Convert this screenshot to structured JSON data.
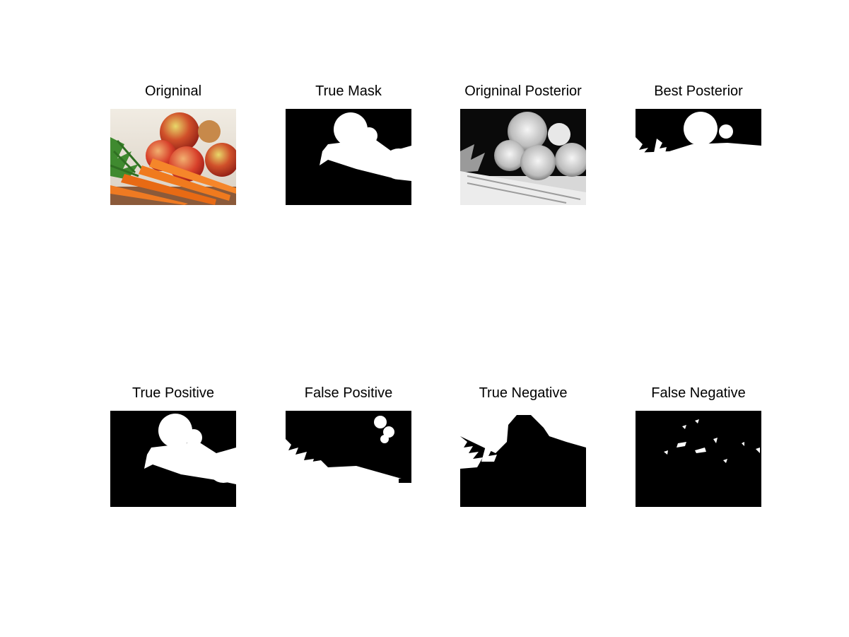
{
  "figure": {
    "background": "#ffffff",
    "panels": [
      {
        "title": "Origninal",
        "kind": "photo"
      },
      {
        "title": "True Mask",
        "kind": "mask-true"
      },
      {
        "title": "Origninal Posterior",
        "kind": "posterior"
      },
      {
        "title": "Best Posterior",
        "kind": "best-posterior"
      },
      {
        "title": "True Positive",
        "kind": "true-positive"
      },
      {
        "title": "False Positive",
        "kind": "false-positive"
      },
      {
        "title": "True Negative",
        "kind": "true-negative"
      },
      {
        "title": "False Negative",
        "kind": "false-negative"
      }
    ]
  }
}
